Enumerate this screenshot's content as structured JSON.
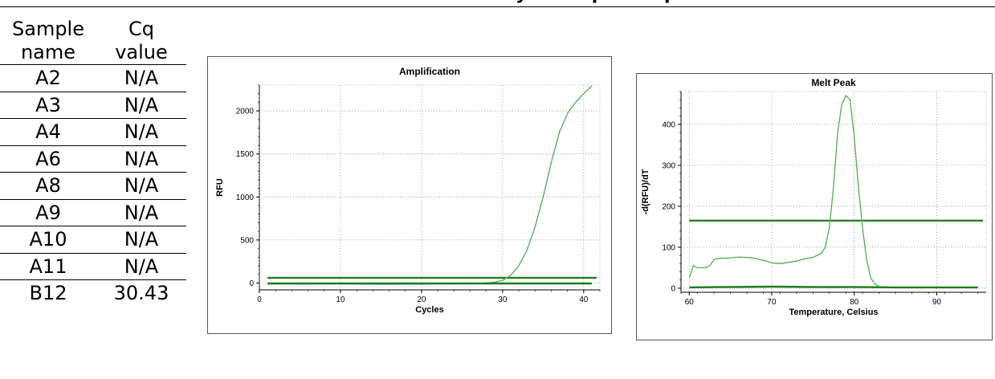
{
  "page_heading": "ssual RT-PCR data analysis in qPCR report",
  "table": {
    "headers": [
      "Sample name",
      "Cq value"
    ],
    "rows": [
      {
        "name": "A2",
        "cq": "N/A"
      },
      {
        "name": "A3",
        "cq": "N/A"
      },
      {
        "name": "A4",
        "cq": "N/A"
      },
      {
        "name": "A6",
        "cq": "N/A"
      },
      {
        "name": "A8",
        "cq": "N/A"
      },
      {
        "name": "A9",
        "cq": "N/A"
      },
      {
        "name": "A10",
        "cq": "N/A"
      },
      {
        "name": "A11",
        "cq": "N/A"
      },
      {
        "name": "B12",
        "cq": "30.43"
      }
    ]
  },
  "colors": {
    "curve": "#4caf50",
    "threshold": "#1e7b1e",
    "baseline": "#1e7b1e"
  },
  "chart_data": [
    {
      "type": "line",
      "title": "Amplification",
      "xlabel": "Cycles",
      "ylabel": "RFU",
      "xlim": [
        0,
        42
      ],
      "ylim": [
        -80,
        2300
      ],
      "xticks": [
        0,
        10,
        20,
        30,
        40
      ],
      "yticks": [
        0,
        500,
        1000,
        1500,
        2000
      ],
      "grid": true,
      "threshold": 60,
      "series": [
        {
          "x": [
            1,
            5,
            10,
            15,
            20,
            25,
            27,
            28,
            29,
            30,
            31,
            32,
            33,
            34,
            35,
            36,
            37,
            38,
            39,
            40,
            41
          ],
          "y": [
            -10,
            -12,
            -10,
            -15,
            -12,
            -10,
            -5,
            0,
            10,
            30,
            90,
            200,
            380,
            650,
            1000,
            1400,
            1750,
            1970,
            2100,
            2200,
            2290
          ]
        },
        {
          "x": [
            1,
            41
          ],
          "y": [
            -5,
            -5
          ]
        }
      ]
    },
    {
      "type": "line",
      "title": "Melt Peak",
      "xlabel": "Temperature, Celsius",
      "ylabel": "-d(RFU)/dT",
      "xlim": [
        59,
        96
      ],
      "ylim": [
        -10,
        480
      ],
      "xticks": [
        60,
        70,
        80,
        90
      ],
      "yticks": [
        0,
        100,
        200,
        300,
        400
      ],
      "grid": true,
      "threshold": 165,
      "series": [
        {
          "x": [
            60,
            60.5,
            61,
            62,
            62.5,
            63,
            63.5,
            64,
            65,
            66,
            67,
            68,
            69,
            70,
            71,
            72,
            73,
            74,
            75,
            76,
            76.5,
            77,
            77.5,
            78,
            78.5,
            79,
            79.5,
            80,
            80.5,
            81,
            81.5,
            82,
            82.5,
            83
          ],
          "y": [
            25,
            55,
            50,
            50,
            55,
            70,
            73,
            73,
            74,
            76,
            75,
            73,
            68,
            62,
            60,
            63,
            66,
            72,
            75,
            85,
            100,
            150,
            250,
            380,
            450,
            470,
            460,
            370,
            250,
            150,
            70,
            25,
            10,
            5
          ]
        },
        {
          "x": [
            60,
            65,
            70,
            75,
            80,
            85,
            90,
            95
          ],
          "y": [
            2,
            3,
            4,
            3,
            3,
            2,
            2,
            2
          ]
        }
      ]
    }
  ]
}
